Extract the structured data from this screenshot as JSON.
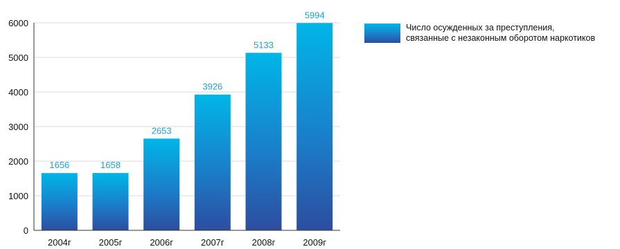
{
  "chart_data": {
    "type": "bar",
    "categories": [
      "2004г",
      "2005г",
      "2006г",
      "2007г",
      "2008г",
      "2009г"
    ],
    "series": [
      {
        "name": "Число осужденных за преступления, связанные с незаконным оборотом наркотиков",
        "values": [
          1656,
          1658,
          2653,
          3926,
          5133,
          5994
        ]
      }
    ],
    "ylim": [
      0,
      6000
    ],
    "yticks": [
      0,
      1000,
      2000,
      3000,
      4000,
      5000,
      6000
    ],
    "grid": true,
    "legend_position": "top-right",
    "colors": {
      "bar_top": "#00b6e8",
      "bar_mid": "#1a7fcb",
      "bar_bottom": "#2d4d9f",
      "label": "#1aa3d9",
      "grid": "#d9d9d9"
    }
  },
  "legend": {
    "line1": "Число осужденных за преступления,",
    "line2": "связанные с незаконным оборотом наркотиков"
  }
}
